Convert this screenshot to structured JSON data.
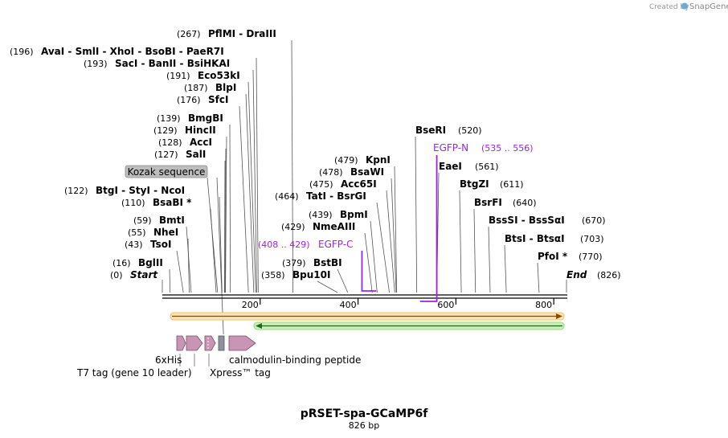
{
  "credit": {
    "created_by": "Created by",
    "brand": "SnapGene"
  },
  "plasmid": {
    "name": "pRSET-spa-GCaMP6f",
    "length_label": "826 bp",
    "length": 826
  },
  "start_site": {
    "pos": "(0)",
    "name": "Start",
    "bp": 0
  },
  "end_site": {
    "name": "End",
    "pos": "(826)",
    "bp": 826
  },
  "sites_left": [
    {
      "pos": "(267)",
      "names": "PflMI  - DraIII",
      "bp": 267
    },
    {
      "pos": "(196)",
      "names": "AvaI  - SmlI  - XhoI  - BsoBI  - PaeR7I",
      "bp": 196
    },
    {
      "pos": "(193)",
      "names": "SacI  - BanII  - BsiHKAI",
      "bp": 193
    },
    {
      "pos": "(191)",
      "names": "Eco53kI",
      "bp": 191
    },
    {
      "pos": "(187)",
      "names": "BlpI",
      "bp": 187
    },
    {
      "pos": "(176)",
      "names": "SfcI",
      "bp": 176
    },
    {
      "pos": "(139)",
      "names": "BmgBI",
      "bp": 139
    },
    {
      "pos": "(129)",
      "names": "HincII",
      "bp": 129
    },
    {
      "pos": "(128)",
      "names": "AccI",
      "bp": 128
    },
    {
      "pos": "(127)",
      "names": "SalI",
      "bp": 127
    },
    {
      "pos": "(122)",
      "names": "BtgI  - StyI  - NcoI",
      "bp": 122
    },
    {
      "pos": "(110)",
      "names": "BsaBI *",
      "bp": 110
    },
    {
      "pos": "(59)",
      "names": "BmtI",
      "bp": 59
    },
    {
      "pos": "(55)",
      "names": "NheI",
      "bp": 55
    },
    {
      "pos": "(43)",
      "names": "TsoI",
      "bp": 43
    },
    {
      "pos": "(16)",
      "names": "BglII",
      "bp": 16
    }
  ],
  "sites_mid": [
    {
      "pos": "(479)",
      "names": "KpnI",
      "bp": 479
    },
    {
      "pos": "(478)",
      "names": "BsaWI",
      "bp": 478
    },
    {
      "pos": "(475)",
      "names": "Acc65I",
      "bp": 475
    },
    {
      "pos": "(464)",
      "names": "TatI  - BsrGI",
      "bp": 464
    },
    {
      "pos": "(439)",
      "names": "BpmI",
      "bp": 439
    },
    {
      "pos": "(429)",
      "names": "NmeAIII",
      "bp": 429
    },
    {
      "pos": "(379)",
      "names": "BstBI",
      "bp": 379
    },
    {
      "pos": "(358)",
      "names": "Bpu10I",
      "bp": 358
    }
  ],
  "sites_right": [
    {
      "names": "BseRI",
      "pos": "(520)",
      "bp": 520
    },
    {
      "names": "EaeI",
      "pos": "(561)",
      "bp": 561
    },
    {
      "names": "BtgZI",
      "pos": "(611)",
      "bp": 611
    },
    {
      "names": "BsrFI",
      "pos": "(640)",
      "bp": 640
    },
    {
      "names": "BssSI  - BssSαI",
      "pos": "(670)",
      "bp": 670
    },
    {
      "names": "BtsI  - BtsαI",
      "pos": "(703)",
      "bp": 703
    },
    {
      "names": "PfoI *",
      "pos": "(770)",
      "bp": 770
    }
  ],
  "primers": [
    {
      "name": "EGFP-C",
      "range": "(408 .. 429)",
      "start": 408,
      "end": 429
    },
    {
      "name": "EGFP-N",
      "range": "(535 .. 556)",
      "start": 535,
      "end": 556
    }
  ],
  "ruler_ticks": [
    {
      "value": 200,
      "label": "200"
    },
    {
      "value": 400,
      "label": "400"
    },
    {
      "value": 600,
      "label": "600"
    },
    {
      "value": 800,
      "label": "800"
    }
  ],
  "features": {
    "kozak": "Kozak sequence",
    "his": "6xHis",
    "t7": "T7 tag (gene 10 leader)",
    "xpress": "Xpress™ tag",
    "cbp": "calmodulin-binding peptide"
  },
  "colors": {
    "orange_feature": "#f0a830",
    "green_feature": "#1a8a2a",
    "tag_fill": "#c896b4",
    "primer": "#a020f0"
  }
}
